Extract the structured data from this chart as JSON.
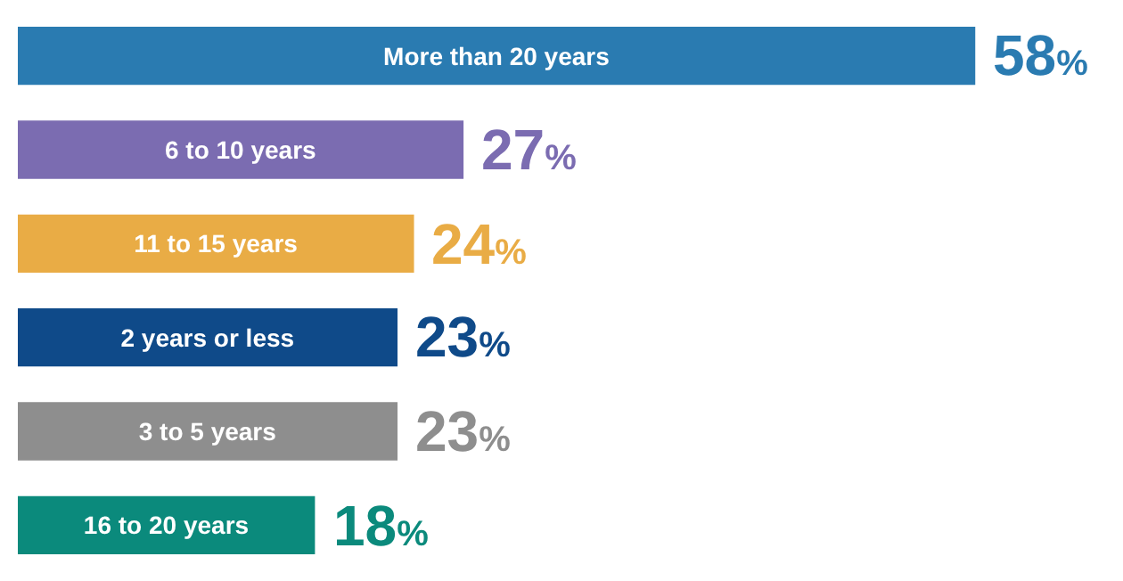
{
  "chart_data": {
    "type": "bar",
    "orientation": "horizontal",
    "categories": [
      "More than 20 years",
      "6 to 10 years",
      "11 to 15 years",
      "2 years or less",
      "3 to 5 years",
      "16 to 20 years"
    ],
    "values": [
      58,
      27,
      24,
      23,
      23,
      18
    ],
    "colors": [
      "#2a7bb1",
      "#7b6cb1",
      "#e9ac45",
      "#0f4a89",
      "#8e8e8e",
      "#0b8a7c"
    ],
    "value_labels": [
      "58%",
      "27%",
      "24%",
      "23%",
      "23%",
      "18%"
    ],
    "legend": false
  }
}
